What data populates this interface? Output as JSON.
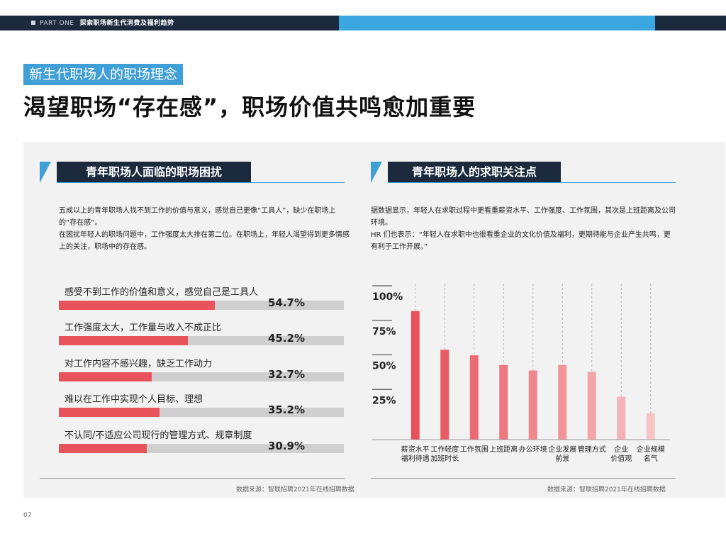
{
  "header": {
    "part_label": "PART ONE",
    "section_label": "探索职场新生代消费及福利趋势"
  },
  "chapter": {
    "label": "新生代职场人的职场理念"
  },
  "page": {
    "title": "渴望职场“存在感”，职场价值共鸣愈加重要",
    "number": "07"
  },
  "left": {
    "heading": "青年职场人面临的职场困扰",
    "paragraphs": [
      "五成以上的青年职场人找不到工作的价值与意义，感觉自己更像“工具人”，缺少在职场上的“存在感”。",
      "在困扰年轻人的职场问题中，工作强度太大排在第二位。在职场上，年轻人渴望得到更多情感上的关注，职场中的存在感。"
    ],
    "source": "数据来源：智联招聘2021年在线招聘数据"
  },
  "right": {
    "heading": "青年职场人的求职关注点",
    "paragraphs": [
      "据数据显示，年轻人在求职过程中更看重薪资水平、工作强度、工作氛围，其次是上班距离及公司环境。",
      "HR 们也表示：“年轻人在求职中也很看重企业的文化价值及福利，更期待能与企业产生共鸣，更有利于工作开展。”"
    ],
    "source": "数据来源：智联招聘2021年在线招聘数据"
  },
  "chart_data": [
    {
      "type": "bar",
      "orientation": "horizontal",
      "title": "青年职场人面临的职场困扰",
      "categories": [
        "感受不到工作的价值和意义，感觉自己是工具人",
        "工作强度太大，工作量与收入不成正比",
        "对工作内容不感兴趣，缺乏工作动力",
        "难以在工作中实现个人目标、理想",
        "不认同/不适应公司现行的管理方式、规章制度"
      ],
      "values": [
        54.7,
        45.2,
        32.7,
        35.2,
        30.9
      ],
      "labels": [
        "54.7%",
        "45.2%",
        "32.7%",
        "35.2%",
        "30.9%"
      ],
      "xlim": [
        0,
        100
      ],
      "bar_color": "#e8525b",
      "track_color": "#cfcfcf"
    },
    {
      "type": "bar",
      "orientation": "vertical",
      "title": "青年职场人的求职关注点",
      "categories": [
        [
          "薪资水平",
          "福利待遇"
        ],
        [
          "工作轻度",
          "加班时长"
        ],
        [
          "工作氛围"
        ],
        [
          "上班距离"
        ],
        [
          "办公环境"
        ],
        [
          "企业发展",
          "前景"
        ],
        [
          "管理方式"
        ],
        [
          "企业",
          "价值观"
        ],
        [
          "企业规模",
          "名气"
        ]
      ],
      "values": [
        93,
        65,
        61,
        54,
        50,
        54,
        49,
        31,
        19
      ],
      "ylim": [
        0,
        100
      ],
      "yticks": [
        "100%",
        "75%",
        "50%",
        "25%"
      ],
      "ytick_values": [
        100,
        75,
        50,
        25
      ],
      "colors": [
        "#e8505b",
        "#ea5c64",
        "#ec6a71",
        "#ee787e",
        "#f0878c",
        "#f1959a",
        "#f3a4a8",
        "#f5b3b6",
        "#f7c3c5"
      ]
    }
  ]
}
